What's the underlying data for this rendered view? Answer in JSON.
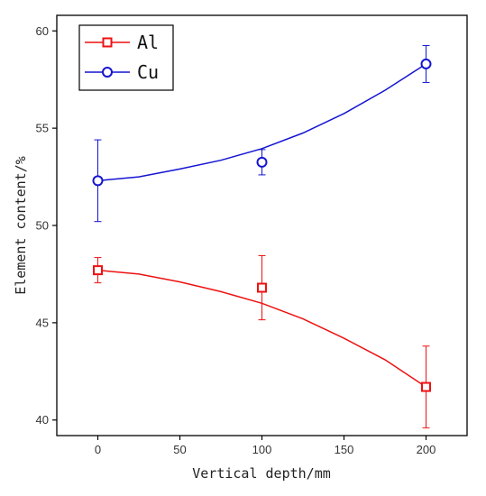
{
  "chart_data": {
    "type": "line",
    "title": "",
    "xlabel": "Vertical depth/mm",
    "ylabel": "Element content/%",
    "xlim": [
      -25,
      225
    ],
    "ylim": [
      39.2,
      60.8
    ],
    "xticks": [
      0,
      50,
      100,
      150,
      200
    ],
    "yticks": [
      40,
      45,
      50,
      55,
      60
    ],
    "grid": false,
    "legend_position": "top-left",
    "series": [
      {
        "name": "Al",
        "color": "#ee1111",
        "marker": "square",
        "x": [
          0,
          100,
          200
        ],
        "y": [
          47.7,
          46.8,
          41.7
        ],
        "error": [
          0.65,
          1.65,
          2.1
        ],
        "fit": [
          [
            0,
            47.7
          ],
          [
            25,
            47.5
          ],
          [
            50,
            47.1
          ],
          [
            75,
            46.6
          ],
          [
            100,
            46.0
          ],
          [
            125,
            45.2
          ],
          [
            150,
            44.2
          ],
          [
            175,
            43.1
          ],
          [
            200,
            41.7
          ]
        ]
      },
      {
        "name": "Cu",
        "color": "#1414d2",
        "marker": "circle",
        "x": [
          0,
          100,
          200
        ],
        "y": [
          52.3,
          53.25,
          58.3
        ],
        "error": [
          2.1,
          0.65,
          0.95
        ],
        "fit": [
          [
            0,
            52.3
          ],
          [
            25,
            52.5
          ],
          [
            50,
            52.9
          ],
          [
            75,
            53.35
          ],
          [
            100,
            53.95
          ],
          [
            125,
            54.75
          ],
          [
            150,
            55.75
          ],
          [
            175,
            56.95
          ],
          [
            200,
            58.3
          ]
        ]
      }
    ]
  }
}
